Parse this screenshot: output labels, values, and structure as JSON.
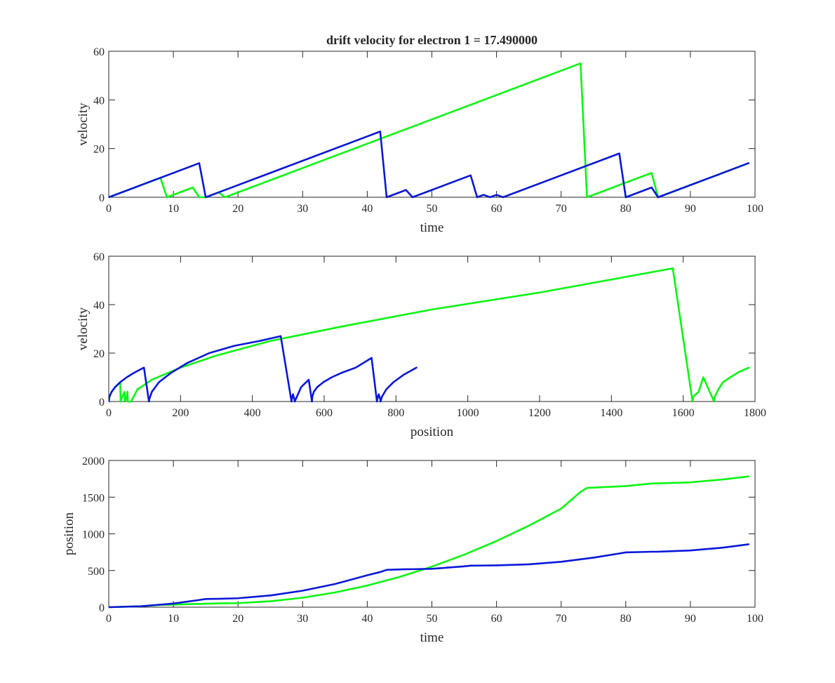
{
  "figure": {
    "title": "drift velocity for electron 1 = 17.490000"
  },
  "colors": {
    "electron_1": "#0a17d8",
    "electron_2": "#0cf513",
    "axes": "#262626"
  },
  "chart_data": [
    {
      "type": "line",
      "xlabel": "time",
      "ylabel": "velocity",
      "xlim": [
        0,
        100
      ],
      "ylim": [
        0,
        60
      ],
      "xticks": [
        0,
        10,
        20,
        30,
        40,
        50,
        60,
        70,
        80,
        90,
        100
      ],
      "yticks": [
        0,
        20,
        40,
        60
      ],
      "series": [
        {
          "color": "#0a17d8",
          "x": [
            0,
            14,
            15,
            17,
            42,
            43,
            46,
            47,
            56,
            57,
            58,
            59,
            60,
            61,
            79,
            80,
            84,
            85,
            99
          ],
          "y": [
            0,
            14,
            0,
            2,
            27,
            0,
            3,
            0,
            9,
            0,
            1,
            0,
            1,
            0,
            18,
            0,
            4,
            0,
            14
          ]
        },
        {
          "color": "#0cf513",
          "x": [
            0,
            8,
            9,
            13,
            14,
            15,
            17,
            18,
            73,
            74,
            84,
            85,
            99
          ],
          "y": [
            0,
            8,
            0,
            4,
            0,
            0,
            2,
            0,
            55,
            0,
            10,
            0,
            14
          ]
        }
      ]
    },
    {
      "type": "line",
      "xlabel": "position",
      "ylabel": "velocity",
      "xlim": [
        0,
        1800
      ],
      "ylim": [
        0,
        60
      ],
      "xticks": [
        0,
        200,
        400,
        600,
        800,
        1000,
        1200,
        1400,
        1600,
        1800
      ],
      "yticks": [
        0,
        20,
        40,
        60
      ],
      "series": [
        {
          "color": "#0a17d8",
          "x": [
            0,
            2,
            8,
            18,
            32,
            50,
            72,
            98,
            112,
            113,
            120,
            140,
            175,
            220,
            280,
            350,
            420,
            479,
            509,
            510,
            513,
            517,
            518,
            536,
            557,
            566,
            567,
            571,
            581,
            598,
            621,
            651,
            688,
            732,
            747,
            748,
            752,
            756,
            757,
            761,
            773,
            793,
            821,
            857
          ],
          "y": [
            0,
            2,
            4,
            6,
            8,
            10,
            12,
            14,
            0,
            1,
            4,
            8,
            12,
            16,
            20,
            23,
            25,
            27,
            0,
            1,
            3,
            1,
            0,
            6,
            9,
            0,
            2,
            4,
            6,
            8,
            10,
            12,
            14,
            18,
            0,
            1,
            3,
            1,
            0,
            2,
            5,
            8,
            11,
            14
          ]
        },
        {
          "color": "#0cf513",
          "x": [
            0,
            2,
            8,
            18,
            32,
            33,
            38,
            44,
            45,
            50,
            52,
            53,
            57,
            62,
            80,
            120,
            200,
            300,
            450,
            650,
            900,
            1200,
            1571,
            1626,
            1628,
            1643,
            1656,
            1686,
            1688,
            1698,
            1711,
            1731,
            1753,
            1783
          ],
          "y": [
            0,
            2,
            4,
            6,
            8,
            0,
            2,
            4,
            0,
            2,
            4,
            0,
            0,
            0,
            5,
            9,
            14,
            19,
            25,
            31,
            38,
            45,
            55,
            0,
            2,
            4,
            10,
            0,
            2,
            5,
            8,
            10,
            12,
            14
          ]
        }
      ]
    },
    {
      "type": "line",
      "xlabel": "time",
      "ylabel": "position",
      "xlim": [
        0,
        100
      ],
      "ylim": [
        0,
        2000
      ],
      "xticks": [
        0,
        10,
        20,
        30,
        40,
        50,
        60,
        70,
        80,
        90,
        100
      ],
      "yticks": [
        0,
        500,
        1000,
        1500,
        2000
      ],
      "series": [
        {
          "color": "#0a17d8",
          "x": [
            0,
            5,
            10,
            14,
            15,
            17,
            20,
            25,
            30,
            35,
            40,
            42,
            43,
            46,
            47,
            50,
            55,
            56,
            57,
            60,
            65,
            70,
            75,
            79,
            80,
            84,
            85,
            90,
            95,
            99
          ],
          "y": [
            0,
            13,
            50,
            98,
            112,
            114,
            122,
            160,
            225,
            316,
            435,
            479,
            509,
            517,
            518,
            523,
            557,
            566,
            567,
            570,
            584,
            619,
            675,
            732,
            747,
            756,
            757,
            773,
            812,
            857
          ]
        },
        {
          "color": "#0cf513",
          "x": [
            0,
            5,
            8,
            9,
            13,
            14,
            17,
            18,
            20,
            25,
            30,
            35,
            40,
            45,
            50,
            55,
            60,
            65,
            70,
            73,
            74,
            80,
            84,
            85,
            90,
            95,
            99
          ],
          "y": [
            0,
            13,
            32,
            33,
            44,
            45,
            52,
            53,
            55,
            81,
            129,
            201,
            295,
            413,
            553,
            716,
            902,
            1111,
            1343,
            1571,
            1626,
            1651,
            1686,
            1688,
            1702,
            1741,
            1783
          ]
        }
      ]
    }
  ]
}
